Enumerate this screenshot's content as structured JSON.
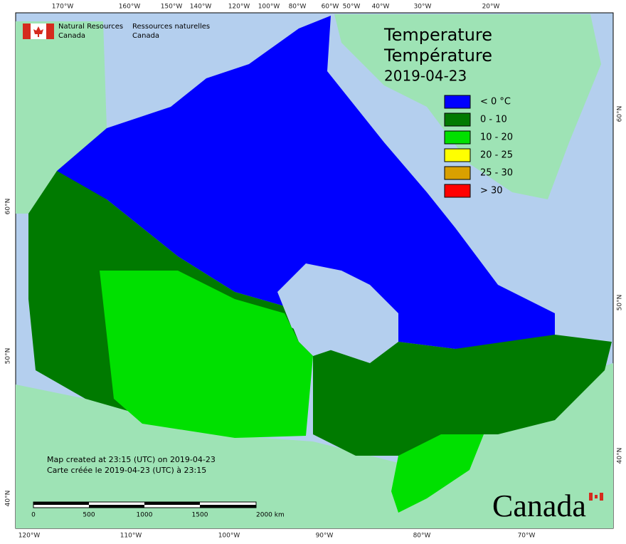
{
  "header": {
    "org_en_1": "Natural Resources",
    "org_en_2": "Canada",
    "org_fr_1": "Ressources naturelles",
    "org_fr_2": "Canada"
  },
  "title": {
    "en": "Temperature",
    "fr": "Température",
    "date": "2019-04-23"
  },
  "legend": [
    {
      "label": "< 0 °C",
      "color": "#0000ff"
    },
    {
      "label": "0 - 10",
      "color": "#007a00"
    },
    {
      "label": "10 - 20",
      "color": "#00e000"
    },
    {
      "label": "20 - 25",
      "color": "#ffff00"
    },
    {
      "label": "25 - 30",
      "color": "#d9a000"
    },
    {
      "label": "> 30",
      "color": "#ff0000"
    }
  ],
  "top_labels": [
    "170°W",
    "160°W",
    "150°W",
    "140°W",
    "120°W",
    "100°W",
    "80°W",
    "60°W",
    "50°W",
    "40°W",
    "30°W",
    "20°W"
  ],
  "bottom_labels": [
    "120°W",
    "110°W",
    "100°W",
    "90°W",
    "80°W",
    "70°W"
  ],
  "left_labels": [
    "60°N",
    "50°N",
    "40°N"
  ],
  "right_labels": [
    "60°N",
    "50°N",
    "40°N"
  ],
  "credit": [
    "Map created at 23:15 (UTC) on 2019-04-23",
    "Carte créée le 2019-04-23 (UTC) à 23:15"
  ],
  "scale": [
    "0",
    "500",
    "1000",
    "1500",
    "2000  km"
  ],
  "wordmark": "Canada"
}
